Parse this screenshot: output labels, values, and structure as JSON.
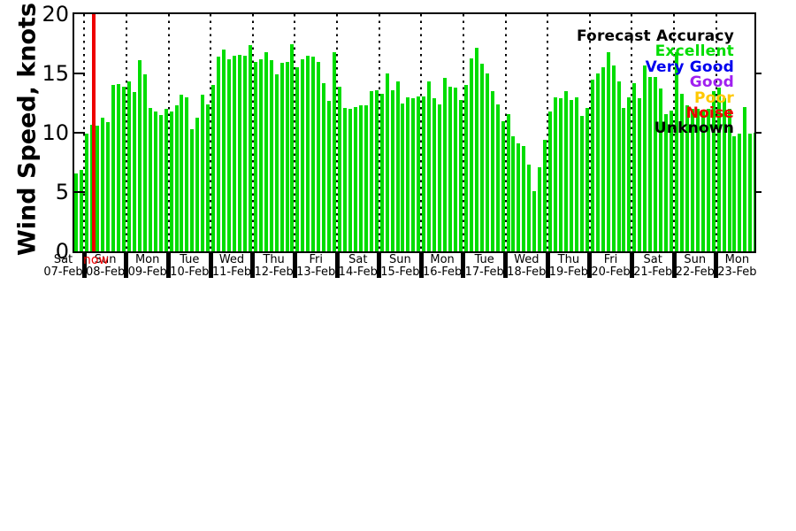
{
  "chart_data": {
    "type": "bar",
    "title": "",
    "ylabel": "Wind Speed, knots",
    "xlabel": "",
    "ylim": [
      0,
      20
    ],
    "yticks": [
      0,
      5,
      10,
      15,
      20
    ],
    "grid": "vertical-dotted-per-day",
    "bar_color": "#00dd00",
    "now_marker": {
      "label": "now",
      "color": "#ee0000",
      "at_date": "08-Feb"
    },
    "legend": {
      "position": "top-right-inside",
      "title": {
        "label": "Forecast Accuracy",
        "color": "#000000"
      },
      "entries": [
        {
          "label": "Excellent",
          "color": "#00dd00"
        },
        {
          "label": "Very Good",
          "color": "#0000ee"
        },
        {
          "label": "Good",
          "color": "#a020f0"
        },
        {
          "label": "Poor",
          "color": "#ffc800"
        },
        {
          "label": "Noise",
          "color": "#ee0000"
        },
        {
          "label": "Unknown",
          "color": "#000000"
        }
      ]
    },
    "days": [
      {
        "day": "Sat",
        "date": "07-Feb",
        "values": [
          6.6,
          6.9
        ]
      },
      {
        "day": "Sun",
        "date": "08-Feb",
        "values": [
          9.9,
          10.7,
          10.6,
          11.3,
          10.9,
          14.0,
          14.1,
          13.9
        ]
      },
      {
        "day": "Mon",
        "date": "09-Feb",
        "values": [
          14.3,
          13.4,
          16.1,
          14.9,
          12.1,
          11.8,
          11.5,
          12.0
        ]
      },
      {
        "day": "Tue",
        "date": "10-Feb",
        "values": [
          11.8,
          12.3,
          13.2,
          13.0,
          10.3,
          11.3,
          13.2,
          12.4
        ]
      },
      {
        "day": "Wed",
        "date": "11-Feb",
        "values": [
          14.0,
          16.4,
          17.0,
          16.2,
          16.5,
          16.6,
          16.5,
          17.4
        ]
      },
      {
        "day": "Thu",
        "date": "12-Feb",
        "values": [
          16.0,
          16.2,
          16.8,
          16.1,
          14.9,
          15.9,
          16.0,
          17.5
        ]
      },
      {
        "day": "Fri",
        "date": "13-Feb",
        "values": [
          15.5,
          16.2,
          16.5,
          16.4,
          16.0,
          14.2,
          12.7,
          16.8
        ]
      },
      {
        "day": "Sat",
        "date": "14-Feb",
        "values": [
          13.9,
          12.1,
          12.0,
          12.2,
          12.3,
          12.3,
          13.5,
          13.6
        ]
      },
      {
        "day": "Sun",
        "date": "15-Feb",
        "values": [
          13.3,
          15.0,
          13.6,
          14.3,
          12.5,
          13.0,
          12.9,
          13.1
        ]
      },
      {
        "day": "Mon",
        "date": "16-Feb",
        "values": [
          13.1,
          14.3,
          12.9,
          12.4,
          14.6,
          13.9,
          13.8,
          12.8
        ]
      },
      {
        "day": "Tue",
        "date": "17-Feb",
        "values": [
          14.0,
          16.3,
          17.2,
          15.8,
          15.0,
          13.5,
          12.4,
          11.0
        ]
      },
      {
        "day": "Wed",
        "date": "18-Feb",
        "values": [
          11.6,
          9.7,
          9.1,
          8.9,
          7.3,
          5.1,
          7.1,
          9.4
        ]
      },
      {
        "day": "Thu",
        "date": "19-Feb",
        "values": [
          11.8,
          13.0,
          12.9,
          13.5,
          12.8,
          13.0,
          11.4,
          12.1
        ]
      },
      {
        "day": "Fri",
        "date": "20-Feb",
        "values": [
          14.5,
          15.0,
          15.5,
          16.8,
          15.7,
          14.3,
          12.1,
          13.0
        ]
      },
      {
        "day": "Sat",
        "date": "21-Feb",
        "values": [
          14.2,
          12.9,
          15.7,
          14.7,
          14.7,
          13.7,
          11.6,
          11.9
        ]
      },
      {
        "day": "Sun",
        "date": "22-Feb",
        "values": [
          16.8,
          13.3,
          12.3,
          12.0,
          12.0,
          11.9,
          12.0,
          13.5
        ]
      },
      {
        "day": "Mon",
        "date": "23-Feb",
        "values": [
          13.8,
          12.9,
          12.0,
          9.7,
          9.9,
          12.2,
          9.9,
          10.0
        ]
      }
    ]
  }
}
